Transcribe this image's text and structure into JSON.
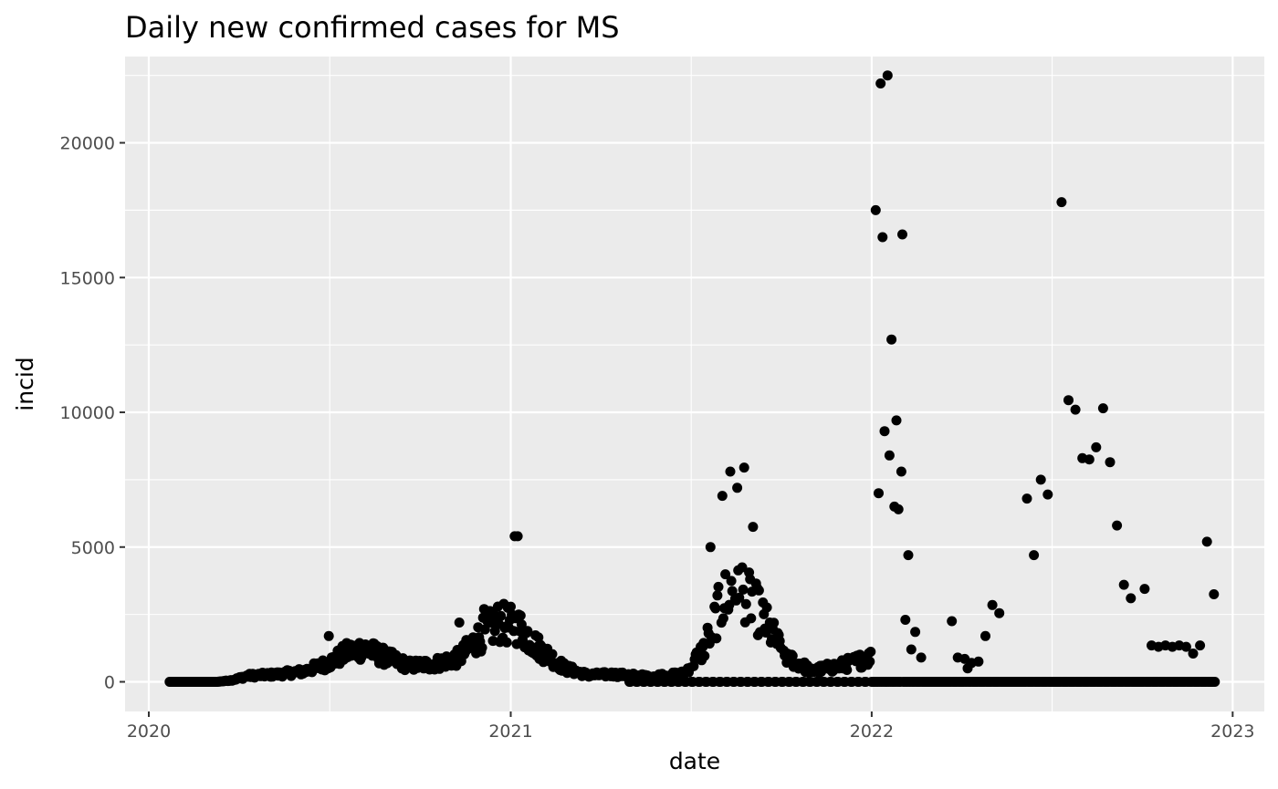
{
  "chart_data": {
    "type": "scatter",
    "title": "Daily new confirmed cases for MS",
    "xlabel": "date",
    "ylabel": "incid",
    "x_ticks": [
      "2020",
      "2021",
      "2022",
      "2023"
    ],
    "y_ticks": [
      "0",
      "5000",
      "10000",
      "15000",
      "20000"
    ],
    "xlim": [
      "2019-12-08",
      "2023-02-02"
    ],
    "ylim": [
      -1100,
      23200
    ],
    "grid": true,
    "legend": "none",
    "colors": {
      "panel": "#EBEBEB",
      "grid": "#FFFFFF",
      "point": "#000000"
    },
    "x_start": "2020-01-22",
    "x_end": "2022-12-14",
    "series": [
      {
        "knots": [
          [
            "2020-01-22",
            0
          ],
          [
            "2020-03-10",
            0
          ],
          [
            "2020-03-25",
            60
          ],
          [
            "2020-04-10",
            220
          ],
          [
            "2020-05-10",
            280
          ],
          [
            "2020-06-05",
            380
          ],
          [
            "2020-07-01",
            700
          ],
          [
            "2020-07-20",
            1100
          ],
          [
            "2020-08-05",
            1250
          ],
          [
            "2020-08-25",
            950
          ],
          [
            "2020-09-20",
            600
          ],
          [
            "2020-10-15",
            650
          ],
          [
            "2020-11-10",
            900
          ],
          [
            "2020-12-01",
            1700
          ],
          [
            "2020-12-20",
            2200
          ],
          [
            "2021-01-10",
            2000
          ],
          [
            "2021-01-31",
            1200
          ],
          [
            "2021-02-25",
            500
          ],
          [
            "2021-03-20",
            250
          ],
          [
            "2021-04-15",
            280
          ],
          [
            "2021-05-20",
            200
          ],
          [
            "2021-06-25",
            300
          ],
          [
            "2021-07-15",
            1200
          ],
          [
            "2021-08-01",
            2800
          ],
          [
            "2021-08-15",
            3700
          ],
          [
            "2021-08-28",
            3300
          ],
          [
            "2021-09-15",
            2200
          ],
          [
            "2021-10-05",
            1000
          ],
          [
            "2021-11-01",
            400
          ],
          [
            "2021-12-01",
            600
          ],
          [
            "2021-12-31",
            900
          ]
        ],
        "outliers": [
          [
            "2020-07-01",
            1700
          ],
          [
            "2020-11-10",
            2200
          ],
          [
            "2020-12-05",
            2700
          ],
          [
            "2021-01-05",
            5400
          ],
          [
            "2021-01-08",
            5400
          ],
          [
            "2021-07-22",
            5000
          ],
          [
            "2021-08-03",
            6900
          ],
          [
            "2021-08-11",
            7800
          ],
          [
            "2021-08-18",
            7200
          ],
          [
            "2021-08-25",
            7950
          ],
          [
            "2021-09-03",
            5750
          ],
          [
            "2022-01-05",
            17500
          ],
          [
            "2022-01-08",
            7000
          ],
          [
            "2022-01-10",
            22200
          ],
          [
            "2022-01-12",
            16500
          ],
          [
            "2022-01-14",
            9300
          ],
          [
            "2022-01-17",
            22500
          ],
          [
            "2022-01-19",
            8400
          ],
          [
            "2022-01-21",
            12700
          ],
          [
            "2022-01-24",
            6500
          ],
          [
            "2022-01-26",
            9700
          ],
          [
            "2022-01-28",
            6400
          ],
          [
            "2022-01-31",
            7800
          ],
          [
            "2022-02-01",
            16600
          ],
          [
            "2022-02-04",
            2300
          ],
          [
            "2022-02-07",
            4700
          ],
          [
            "2022-02-10",
            1200
          ],
          [
            "2022-02-14",
            1850
          ],
          [
            "2022-02-20",
            900
          ]
        ],
        "sparse": [
          [
            "2022-03-23",
            2250
          ],
          [
            "2022-03-29",
            900
          ],
          [
            "2022-04-05",
            850
          ],
          [
            "2022-04-08",
            500
          ],
          [
            "2022-04-12",
            700
          ],
          [
            "2022-04-19",
            750
          ],
          [
            "2022-04-26",
            1700
          ],
          [
            "2022-05-03",
            2850
          ],
          [
            "2022-05-10",
            2550
          ],
          [
            "2022-06-07",
            6800
          ],
          [
            "2022-06-14",
            4700
          ],
          [
            "2022-06-21",
            7500
          ],
          [
            "2022-06-28",
            6950
          ],
          [
            "2022-07-12",
            17800
          ],
          [
            "2022-07-19",
            10450
          ],
          [
            "2022-07-26",
            10100
          ],
          [
            "2022-08-02",
            8300
          ],
          [
            "2022-08-09",
            8250
          ],
          [
            "2022-08-16",
            8700
          ],
          [
            "2022-08-23",
            10150
          ],
          [
            "2022-08-30",
            8150
          ],
          [
            "2022-09-06",
            5800
          ],
          [
            "2022-09-13",
            3600
          ],
          [
            "2022-09-20",
            3100
          ],
          [
            "2022-10-04",
            3450
          ],
          [
            "2022-10-11",
            1350
          ],
          [
            "2022-10-18",
            1300
          ],
          [
            "2022-10-25",
            1350
          ],
          [
            "2022-11-01",
            1300
          ],
          [
            "2022-11-08",
            1350
          ],
          [
            "2022-11-15",
            1300
          ],
          [
            "2022-11-22",
            1050
          ],
          [
            "2022-11-29",
            1350
          ],
          [
            "2022-12-06",
            5200
          ],
          [
            "2022-12-13",
            3250
          ]
        ]
      }
    ]
  }
}
